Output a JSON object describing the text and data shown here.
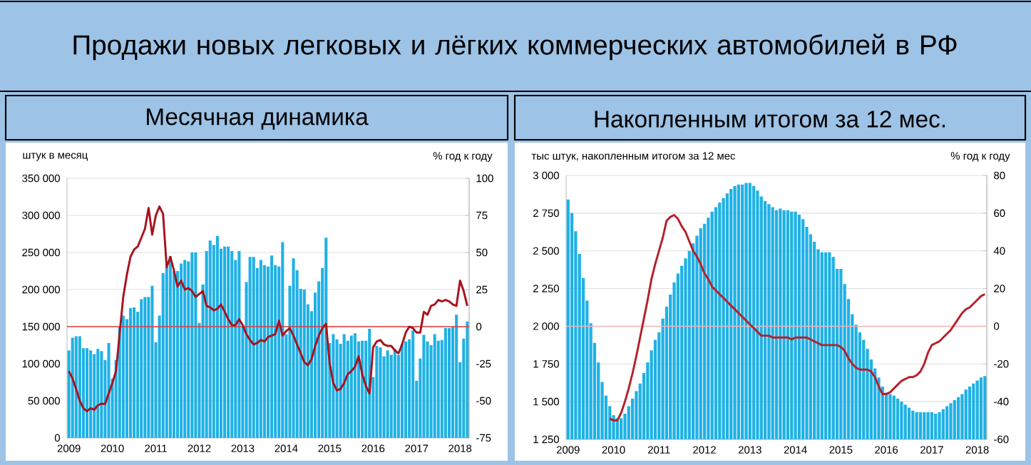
{
  "chart_data": [
    {
      "type": "bar",
      "title": "Продажи новых легковых и лёгких коммерческих автомобилей в РФ",
      "subtitle": "Месячная динамика",
      "ylabel": "штук в месяц",
      "y2label": "% год к году",
      "x": [
        "2009-01",
        "2009-02",
        "2009-03",
        "2009-04",
        "2009-05",
        "2009-06",
        "2009-07",
        "2009-08",
        "2009-09",
        "2009-10",
        "2009-11",
        "2009-12",
        "2010-01",
        "2010-02",
        "2010-03",
        "2010-04",
        "2010-05",
        "2010-06",
        "2010-07",
        "2010-08",
        "2010-09",
        "2010-10",
        "2010-11",
        "2010-12",
        "2011-01",
        "2011-02",
        "2011-03",
        "2011-04",
        "2011-05",
        "2011-06",
        "2011-07",
        "2011-08",
        "2011-09",
        "2011-10",
        "2011-11",
        "2011-12",
        "2012-01",
        "2012-02",
        "2012-03",
        "2012-04",
        "2012-05",
        "2012-06",
        "2012-07",
        "2012-08",
        "2012-09",
        "2012-10",
        "2012-11",
        "2012-12",
        "2013-01",
        "2013-02",
        "2013-03",
        "2013-04",
        "2013-05",
        "2013-06",
        "2013-07",
        "2013-08",
        "2013-09",
        "2013-10",
        "2013-11",
        "2013-12",
        "2014-01",
        "2014-02",
        "2014-03",
        "2014-04",
        "2014-05",
        "2014-06",
        "2014-07",
        "2014-08",
        "2014-09",
        "2014-10",
        "2014-11",
        "2014-12",
        "2015-01",
        "2015-02",
        "2015-03",
        "2015-04",
        "2015-05",
        "2015-06",
        "2015-07",
        "2015-08",
        "2015-09",
        "2015-10",
        "2015-11",
        "2015-12",
        "2016-01",
        "2016-02",
        "2016-03",
        "2016-04",
        "2016-05",
        "2016-06",
        "2016-07",
        "2016-08",
        "2016-09",
        "2016-10",
        "2016-11",
        "2016-12",
        "2017-01",
        "2017-02",
        "2017-03",
        "2017-04",
        "2017-05",
        "2017-06",
        "2017-07",
        "2017-08",
        "2017-09",
        "2017-10",
        "2017-11",
        "2017-12",
        "2018-01",
        "2018-02",
        "2018-03"
      ],
      "series": [
        {
          "color": "#1fb1e6",
          "values": [
            118000,
            135000,
            137000,
            137000,
            121000,
            121000,
            118000,
            113000,
            120000,
            117000,
            105000,
            128000,
            80000,
            105000,
            150000,
            165000,
            160000,
            175000,
            176000,
            170000,
            187000,
            190000,
            190000,
            205000,
            129000,
            165000,
            222000,
            230000,
            245000,
            225000,
            225000,
            235000,
            240000,
            238000,
            250000,
            250000,
            155000,
            207000,
            252000,
            266000,
            260000,
            272000,
            255000,
            258000,
            258000,
            252000,
            240000,
            252000,
            150000,
            210000,
            244000,
            244000,
            229000,
            240000,
            233000,
            231000,
            246000,
            233000,
            231000,
            264000,
            140000,
            205000,
            242000,
            226000,
            201000,
            200000,
            180000,
            171000,
            196000,
            211000,
            229000,
            270000,
            128000,
            140000,
            133000,
            127000,
            140000,
            131000,
            138000,
            141000,
            130000,
            131000,
            131000,
            147000,
            82000,
            124000,
            122000,
            110000,
            118000,
            112000,
            120000,
            112000,
            127000,
            130000,
            133000,
            145000,
            77000,
            107000,
            139000,
            130000,
            125000,
            140000,
            131000,
            132000,
            148000,
            148000,
            150000,
            166000,
            102000,
            134000,
            157000
          ]
        },
        {
          "type": "line",
          "axis": "y2",
          "color": "#a8121c",
          "values": [
            -30,
            -35,
            -42,
            -50,
            -55,
            -57,
            -55,
            -56,
            -53,
            -52,
            -52,
            -45,
            -38,
            -30,
            -5,
            20,
            35,
            47,
            52,
            54,
            60,
            66,
            80,
            62,
            75,
            81,
            76,
            40,
            47,
            38,
            27,
            31,
            25,
            26,
            24,
            20,
            22,
            24,
            14,
            13,
            11,
            12,
            15,
            10,
            5,
            1,
            1,
            5,
            1,
            -5,
            -9,
            -12,
            -11,
            -9,
            -10,
            -7,
            -6,
            -5,
            4,
            -6,
            -3,
            -1,
            -6,
            -12,
            -18,
            -24,
            -26,
            -22,
            -13,
            -6,
            -1,
            2,
            -25,
            -38,
            -43,
            -42,
            -38,
            -32,
            -30,
            -27,
            -20,
            -32,
            -40,
            -45,
            -14,
            -10,
            -9,
            -12,
            -13,
            -13,
            -16,
            -18,
            -12,
            -4,
            0,
            -1,
            -4,
            -4,
            10,
            8,
            14,
            15,
            18,
            17,
            18,
            17,
            15,
            14,
            31,
            24,
            14
          ]
        }
      ],
      "xlim": [
        "2008-12-16",
        "2018-03-17"
      ],
      "xticks": [
        "2009",
        "2010",
        "2011",
        "2012",
        "2013",
        "2014",
        "2015",
        "2016",
        "2017",
        "2018"
      ],
      "ylim": [
        0,
        350000
      ],
      "yticks": [
        {
          "value": 0,
          "label": "0"
        },
        {
          "value": 50000,
          "label": "50 000"
        },
        {
          "value": 100000,
          "label": "100 000"
        },
        {
          "value": 150000,
          "label": "150 000"
        },
        {
          "value": 200000,
          "label": "200 000"
        },
        {
          "value": 250000,
          "label": "250 000"
        },
        {
          "value": 300000,
          "label": "300 000"
        },
        {
          "value": 350000,
          "label": "350 000"
        }
      ],
      "y2lim": [
        -75,
        100
      ],
      "y2ticks": [
        -75,
        -50,
        -25,
        0,
        25,
        50,
        75,
        100
      ],
      "grid": "y",
      "ref_lines": [
        {
          "axis": "y2",
          "value": 0,
          "color": "#e03c3c"
        }
      ]
    },
    {
      "type": "bar",
      "title": "Накопленным итогом за 12 мес.",
      "ylabel": "тыс штук, накопленным итогом за 12 мес",
      "y2label": "% год к году",
      "x": [
        "2009-01",
        "2009-02",
        "2009-03",
        "2009-04",
        "2009-05",
        "2009-06",
        "2009-07",
        "2009-08",
        "2009-09",
        "2009-10",
        "2009-11",
        "2009-12",
        "2010-01",
        "2010-02",
        "2010-03",
        "2010-04",
        "2010-05",
        "2010-06",
        "2010-07",
        "2010-08",
        "2010-09",
        "2010-10",
        "2010-11",
        "2010-12",
        "2011-01",
        "2011-02",
        "2011-03",
        "2011-04",
        "2011-05",
        "2011-06",
        "2011-07",
        "2011-08",
        "2011-09",
        "2011-10",
        "2011-11",
        "2011-12",
        "2012-01",
        "2012-02",
        "2012-03",
        "2012-04",
        "2012-05",
        "2012-06",
        "2012-07",
        "2012-08",
        "2012-09",
        "2012-10",
        "2012-11",
        "2012-12",
        "2013-01",
        "2013-02",
        "2013-03",
        "2013-04",
        "2013-05",
        "2013-06",
        "2013-07",
        "2013-08",
        "2013-09",
        "2013-10",
        "2013-11",
        "2013-12",
        "2014-01",
        "2014-02",
        "2014-03",
        "2014-04",
        "2014-05",
        "2014-06",
        "2014-07",
        "2014-08",
        "2014-09",
        "2014-10",
        "2014-11",
        "2014-12",
        "2015-01",
        "2015-02",
        "2015-03",
        "2015-04",
        "2015-05",
        "2015-06",
        "2015-07",
        "2015-08",
        "2015-09",
        "2015-10",
        "2015-11",
        "2015-12",
        "2016-01",
        "2016-02",
        "2016-03",
        "2016-04",
        "2016-05",
        "2016-06",
        "2016-07",
        "2016-08",
        "2016-09",
        "2016-10",
        "2016-11",
        "2016-12",
        "2017-01",
        "2017-02",
        "2017-03",
        "2017-04",
        "2017-05",
        "2017-06",
        "2017-07",
        "2017-08",
        "2017-09",
        "2017-10",
        "2017-11",
        "2017-12",
        "2018-01",
        "2018-02",
        "2018-03"
      ],
      "series": [
        {
          "color": "#1fb1e6",
          "values": [
            2840,
            2750,
            2630,
            2480,
            2320,
            2170,
            2020,
            1890,
            1760,
            1630,
            1540,
            1470,
            1410,
            1390,
            1390,
            1420,
            1470,
            1520,
            1570,
            1620,
            1690,
            1760,
            1840,
            1910,
            1960,
            2050,
            2130,
            2210,
            2290,
            2350,
            2400,
            2450,
            2500,
            2550,
            2600,
            2650,
            2680,
            2720,
            2760,
            2790,
            2820,
            2850,
            2880,
            2910,
            2930,
            2940,
            2940,
            2950,
            2950,
            2930,
            2900,
            2860,
            2830,
            2810,
            2790,
            2770,
            2780,
            2770,
            2770,
            2760,
            2760,
            2740,
            2710,
            2660,
            2610,
            2560,
            2510,
            2490,
            2490,
            2490,
            2460,
            2380,
            2380,
            2280,
            2180,
            2080,
            2010,
            1960,
            1910,
            1850,
            1780,
            1720,
            1660,
            1600,
            1560,
            1550,
            1540,
            1520,
            1500,
            1480,
            1460,
            1440,
            1430,
            1430,
            1430,
            1430,
            1430,
            1420,
            1430,
            1450,
            1470,
            1490,
            1510,
            1530,
            1550,
            1580,
            1600,
            1620,
            1640,
            1660,
            1670
          ]
        },
        {
          "type": "line",
          "axis": "y2",
          "color": "#b5202a",
          "values": [
            null,
            null,
            null,
            null,
            null,
            null,
            null,
            null,
            null,
            null,
            null,
            -49,
            -50,
            -50,
            -46,
            -40,
            -33,
            -25,
            -16,
            -6,
            4,
            14,
            25,
            33,
            40,
            47,
            56,
            58,
            59,
            57,
            53,
            50,
            45,
            40,
            37,
            33,
            28,
            25,
            21,
            19,
            17,
            15,
            13,
            11,
            9,
            7,
            5,
            3,
            1,
            -1,
            -3,
            -5,
            -5,
            -5,
            -6,
            -6,
            -6,
            -6,
            -6,
            -7,
            -6,
            -6,
            -6,
            -6,
            -7,
            -8,
            -9,
            -10,
            -10,
            -10,
            -10,
            -10,
            -11,
            -13,
            -17,
            -20,
            -22,
            -23,
            -23,
            -23,
            -24,
            -27,
            -32,
            -36,
            -36,
            -35,
            -33,
            -31,
            -29,
            -28,
            -27,
            -27,
            -26,
            -24,
            -20,
            -14,
            -10,
            -9,
            -8,
            -6,
            -4,
            -2,
            1,
            4,
            7,
            9,
            10,
            12,
            14,
            16,
            17
          ]
        }
      ],
      "xlim": [
        "2008-12-16",
        "2018-03-17"
      ],
      "xticks": [
        "2009",
        "2010",
        "2011",
        "2012",
        "2013",
        "2014",
        "2015",
        "2016",
        "2017",
        "2018"
      ],
      "ylim": [
        1250,
        3000
      ],
      "yticks": [
        {
          "value": 1250,
          "label": "1 250"
        },
        {
          "value": 1500,
          "label": "1 500"
        },
        {
          "value": 1750,
          "label": "1 750"
        },
        {
          "value": 2000,
          "label": "2 000"
        },
        {
          "value": 2250,
          "label": "2 250"
        },
        {
          "value": 2500,
          "label": "2 500"
        },
        {
          "value": 2750,
          "label": "2 750"
        },
        {
          "value": 3000,
          "label": "3 000"
        }
      ],
      "y2lim": [
        -60,
        80
      ],
      "y2ticks": [
        -60,
        -40,
        -20,
        0,
        20,
        40,
        60,
        80
      ],
      "grid": "y",
      "ref_lines": [
        {
          "axis": "y2",
          "value": 0,
          "color": "#f0b4b4"
        }
      ]
    }
  ]
}
